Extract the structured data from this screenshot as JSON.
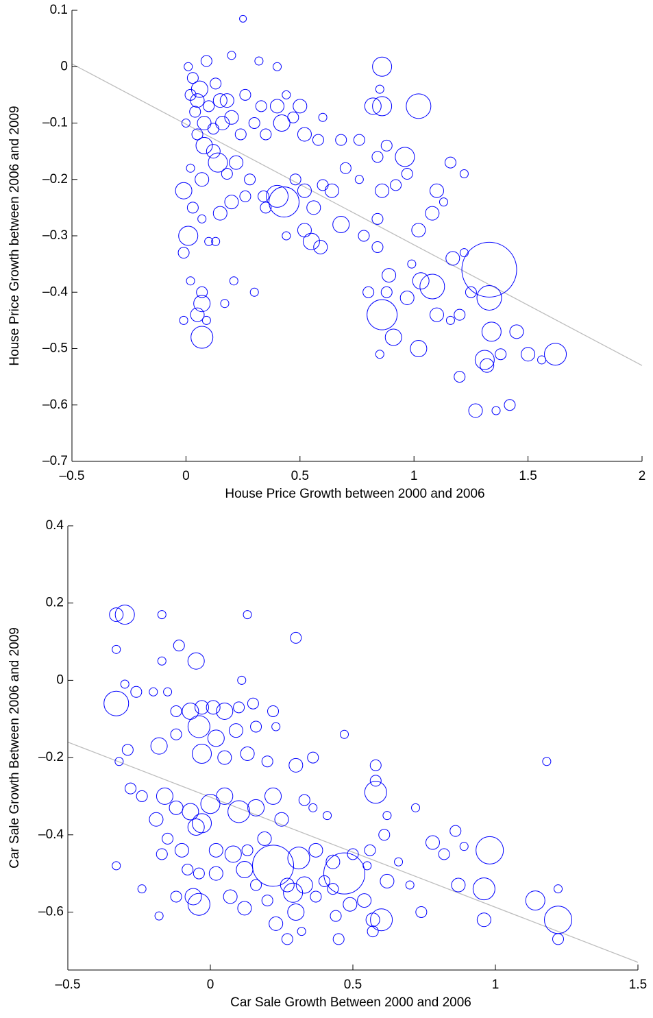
{
  "chart_data": [
    {
      "type": "bubble",
      "xlabel": "House Price Growth between 2000 and 2006",
      "ylabel": "House Price Growth between 2006 and 2009",
      "xlim": [
        -0.5,
        2
      ],
      "ylim": [
        -0.7,
        0.1
      ],
      "xticks": [
        {
          "value": -0.5,
          "label": "–0.5"
        },
        0,
        0.5,
        1,
        1.5,
        2
      ],
      "yticks": [
        0.1,
        0,
        {
          "value": -0.1,
          "label": "–0.1"
        },
        {
          "value": -0.2,
          "label": "–0.2"
        },
        {
          "value": -0.3,
          "label": "–0.3"
        },
        {
          "value": -0.4,
          "label": "–0.4"
        },
        {
          "value": -0.5,
          "label": "–0.5"
        },
        {
          "value": -0.6,
          "label": "–0.6"
        },
        {
          "value": -0.7,
          "label": "–0.7"
        }
      ],
      "series": [
        {
          "color": "#0000ff",
          "x": [
            0.25,
            0.01,
            0.09,
            0.2,
            0.32,
            0.4,
            0.86,
            0.03,
            0.06,
            0.13,
            0.18,
            0.26,
            0.02,
            0.05,
            0.1,
            0.15,
            0.2,
            0.33,
            0.4,
            0.44,
            0.5,
            0.0,
            0.04,
            0.08,
            0.12,
            0.16,
            0.24,
            0.3,
            0.35,
            0.42,
            0.47,
            0.52,
            0.58,
            0.6,
            0.68,
            0.76,
            0.82,
            0.86,
            1.02,
            0.85,
            0.05,
            0.08,
            0.12,
            0.14,
            0.18,
            0.22,
            0.28,
            0.34,
            0.4,
            0.43,
            0.48,
            0.52,
            0.56,
            0.6,
            0.64,
            0.7,
            0.76,
            0.84,
            0.88,
            0.96,
            0.97,
            1.16,
            1.22,
            -0.01,
            0.03,
            0.07,
            0.02,
            0.07,
            0.15,
            0.2,
            0.26,
            0.35,
            0.44,
            0.52,
            0.55,
            0.59,
            0.68,
            0.78,
            0.84,
            0.86,
            0.84,
            0.92,
            1.02,
            1.08,
            1.1,
            1.13,
            0.01,
            -0.01,
            0.1,
            0.13,
            0.02,
            0.07,
            0.07,
            0.05,
            -0.01,
            0.07,
            0.09,
            0.17,
            0.21,
            0.3,
            0.8,
            0.89,
            0.88,
            0.86,
            0.91,
            0.97,
            0.99,
            1.03,
            1.08,
            1.1,
            1.16,
            1.2,
            1.25,
            1.22,
            1.17,
            1.33,
            1.33,
            1.34,
            1.32,
            1.31,
            1.38,
            1.45,
            1.5,
            1.56,
            1.62,
            1.2,
            1.27,
            1.36,
            1.42,
            0.85,
            1.02
          ],
          "values": [
            0.085,
            0.0,
            0.01,
            0.02,
            0.01,
            0.0,
            0.0,
            -0.02,
            -0.04,
            -0.03,
            -0.06,
            -0.05,
            -0.05,
            -0.06,
            -0.07,
            -0.06,
            -0.09,
            -0.07,
            -0.07,
            -0.05,
            -0.07,
            -0.1,
            -0.08,
            -0.1,
            -0.11,
            -0.1,
            -0.12,
            -0.1,
            -0.12,
            -0.1,
            -0.09,
            -0.12,
            -0.13,
            -0.09,
            -0.13,
            -0.13,
            -0.07,
            -0.07,
            -0.07,
            -0.04,
            -0.12,
            -0.14,
            -0.15,
            -0.17,
            -0.19,
            -0.17,
            -0.2,
            -0.23,
            -0.23,
            -0.24,
            -0.2,
            -0.22,
            -0.25,
            -0.21,
            -0.22,
            -0.18,
            -0.2,
            -0.16,
            -0.14,
            -0.16,
            -0.19,
            -0.17,
            -0.19,
            -0.22,
            -0.25,
            -0.2,
            -0.18,
            -0.27,
            -0.26,
            -0.24,
            -0.23,
            -0.25,
            -0.3,
            -0.29,
            -0.31,
            -0.32,
            -0.28,
            -0.3,
            -0.27,
            -0.22,
            -0.32,
            -0.21,
            -0.29,
            -0.26,
            -0.22,
            -0.24,
            -0.3,
            -0.33,
            -0.31,
            -0.31,
            -0.38,
            -0.4,
            -0.42,
            -0.44,
            -0.45,
            -0.48,
            -0.45,
            -0.42,
            -0.38,
            -0.4,
            -0.4,
            -0.37,
            -0.4,
            -0.44,
            -0.48,
            -0.41,
            -0.35,
            -0.38,
            -0.39,
            -0.44,
            -0.45,
            -0.44,
            -0.4,
            -0.33,
            -0.34,
            -0.36,
            -0.41,
            -0.47,
            -0.53,
            -0.52,
            -0.51,
            -0.47,
            -0.51,
            -0.52,
            -0.51,
            -0.55,
            -0.61,
            -0.61,
            -0.6,
            -0.51,
            -0.5
          ],
          "sizes": [
            5,
            6,
            8,
            6,
            6,
            6,
            14,
            8,
            12,
            8,
            10,
            8,
            8,
            10,
            8,
            10,
            10,
            8,
            10,
            6,
            10,
            6,
            8,
            10,
            8,
            10,
            8,
            8,
            8,
            12,
            8,
            10,
            8,
            6,
            8,
            8,
            12,
            14,
            18,
            6,
            8,
            12,
            10,
            14,
            8,
            10,
            8,
            8,
            16,
            22,
            8,
            10,
            10,
            8,
            10,
            8,
            6,
            8,
            8,
            14,
            8,
            8,
            6,
            12,
            8,
            10,
            6,
            6,
            10,
            10,
            8,
            8,
            6,
            10,
            12,
            10,
            12,
            8,
            8,
            10,
            8,
            8,
            10,
            10,
            10,
            6,
            14,
            8,
            6,
            6,
            6,
            8,
            12,
            10,
            6,
            16,
            6,
            6,
            6,
            6,
            8,
            10,
            8,
            22,
            12,
            10,
            6,
            12,
            18,
            10,
            6,
            8,
            8,
            6,
            10,
            40,
            18,
            14,
            10,
            14,
            8,
            10,
            10,
            6,
            16,
            8,
            10,
            6,
            8,
            6,
            12
          ]
        }
      ],
      "fit_line": {
        "color": "#bdbdbd",
        "x": [
          -0.5,
          2
        ],
        "y": [
          0.005,
          -0.53
        ]
      }
    },
    {
      "type": "bubble",
      "xlabel": "Car Sale Growth Between 2000 and 2006",
      "ylabel": "Car Sale Growth Between 2006 and 2009",
      "xlim": [
        -0.5,
        1.5
      ],
      "ylim": [
        -0.75,
        0.4
      ],
      "xticks": [
        {
          "value": -0.5,
          "label": "–0.5"
        },
        0,
        0.5,
        1,
        1.5
      ],
      "yticks": [
        0.4,
        0.2,
        0,
        {
          "value": -0.2,
          "label": "–0.2"
        },
        {
          "value": -0.4,
          "label": "–0.4"
        },
        {
          "value": -0.6,
          "label": "–0.6"
        }
      ],
      "series": [
        {
          "color": "#0000ff",
          "x": [
            -0.33,
            -0.3,
            -0.17,
            0.13,
            0.3,
            -0.33,
            -0.17,
            -0.11,
            -0.05,
            0.11,
            -0.33,
            -0.3,
            -0.26,
            -0.2,
            -0.15,
            -0.12,
            -0.07,
            -0.03,
            0.01,
            0.05,
            0.1,
            0.15,
            0.22,
            -0.04,
            0.02,
            0.09,
            0.16,
            0.23,
            0.47,
            -0.32,
            -0.29,
            -0.18,
            -0.12,
            -0.03,
            0.05,
            0.13,
            0.2,
            0.3,
            0.36,
            0.58,
            0.58,
            0.58,
            1.18,
            -0.28,
            -0.24,
            -0.16,
            -0.12,
            -0.07,
            -0.03,
            0.0,
            0.05,
            0.1,
            0.16,
            0.22,
            0.25,
            0.33,
            0.36,
            0.41,
            -0.19,
            -0.15,
            -0.1,
            -0.05,
            0.02,
            0.08,
            0.13,
            0.19,
            0.22,
            0.31,
            0.37,
            0.47,
            0.43,
            0.5,
            0.56,
            0.61,
            0.62,
            0.72,
            0.78,
            0.86,
            0.89,
            0.98,
            0.82,
            0.66,
            -0.33,
            -0.17,
            -0.08,
            -0.04,
            0.02,
            0.12,
            0.16,
            0.27,
            0.33,
            0.4,
            0.55,
            0.62,
            0.7,
            0.87,
            0.96,
            -0.24,
            -0.12,
            -0.06,
            -0.04,
            0.07,
            0.12,
            0.2,
            0.29,
            0.3,
            0.37,
            0.43,
            0.44,
            0.49,
            0.54,
            0.57,
            0.6,
            0.45,
            0.27,
            0.23,
            -0.18,
            0.74,
            0.96,
            1.14,
            1.22,
            1.22,
            1.22,
            0.57,
            0.32
          ],
          "values": [
            0.17,
            0.17,
            0.17,
            0.17,
            0.11,
            0.08,
            0.05,
            0.09,
            0.05,
            0.0,
            -0.06,
            -0.01,
            -0.03,
            -0.03,
            -0.03,
            -0.08,
            -0.08,
            -0.07,
            -0.07,
            -0.08,
            -0.07,
            -0.06,
            -0.08,
            -0.12,
            -0.15,
            -0.13,
            -0.12,
            -0.12,
            -0.14,
            -0.21,
            -0.18,
            -0.17,
            -0.14,
            -0.19,
            -0.2,
            -0.19,
            -0.21,
            -0.22,
            -0.2,
            -0.22,
            -0.26,
            -0.29,
            -0.21,
            -0.28,
            -0.3,
            -0.3,
            -0.33,
            -0.34,
            -0.37,
            -0.32,
            -0.3,
            -0.34,
            -0.33,
            -0.3,
            -0.36,
            -0.31,
            -0.33,
            -0.35,
            -0.36,
            -0.41,
            -0.44,
            -0.38,
            -0.44,
            -0.45,
            -0.44,
            -0.41,
            -0.48,
            -0.46,
            -0.44,
            -0.5,
            -0.47,
            -0.45,
            -0.44,
            -0.4,
            -0.35,
            -0.33,
            -0.42,
            -0.39,
            -0.43,
            -0.44,
            -0.45,
            -0.47,
            -0.48,
            -0.45,
            -0.49,
            -0.5,
            -0.5,
            -0.49,
            -0.53,
            -0.53,
            -0.53,
            -0.52,
            -0.48,
            -0.52,
            -0.53,
            -0.53,
            -0.54,
            -0.54,
            -0.56,
            -0.56,
            -0.58,
            -0.56,
            -0.59,
            -0.57,
            -0.55,
            -0.6,
            -0.56,
            -0.54,
            -0.61,
            -0.58,
            -0.57,
            -0.62,
            -0.62,
            -0.67,
            -0.67,
            -0.63,
            -0.61,
            -0.6,
            -0.62,
            -0.57,
            -0.62,
            -0.54,
            -0.67,
            -0.65,
            -0.65
          ],
          "sizes": [
            10,
            14,
            6,
            6,
            8,
            6,
            6,
            8,
            12,
            6,
            18,
            6,
            8,
            6,
            6,
            8,
            12,
            10,
            10,
            12,
            8,
            8,
            8,
            16,
            12,
            10,
            8,
            6,
            6,
            6,
            8,
            12,
            8,
            14,
            10,
            10,
            8,
            10,
            8,
            8,
            8,
            16,
            6,
            8,
            8,
            12,
            10,
            12,
            14,
            14,
            12,
            16,
            12,
            12,
            10,
            8,
            6,
            6,
            10,
            8,
            10,
            12,
            10,
            12,
            8,
            10,
            30,
            16,
            10,
            30,
            10,
            8,
            8,
            8,
            6,
            6,
            10,
            8,
            6,
            20,
            8,
            6,
            6,
            8,
            8,
            8,
            10,
            12,
            8,
            10,
            12,
            8,
            6,
            10,
            6,
            10,
            16,
            6,
            8,
            12,
            16,
            10,
            10,
            8,
            14,
            12,
            8,
            8,
            8,
            10,
            10,
            10,
            16,
            8,
            8,
            10,
            6,
            8,
            10,
            14,
            20,
            6,
            8,
            8,
            6
          ]
        }
      ],
      "fit_line": {
        "color": "#bdbdbd",
        "x": [
          -0.5,
          1.5
        ],
        "y": [
          -0.16,
          -0.73
        ]
      }
    }
  ]
}
